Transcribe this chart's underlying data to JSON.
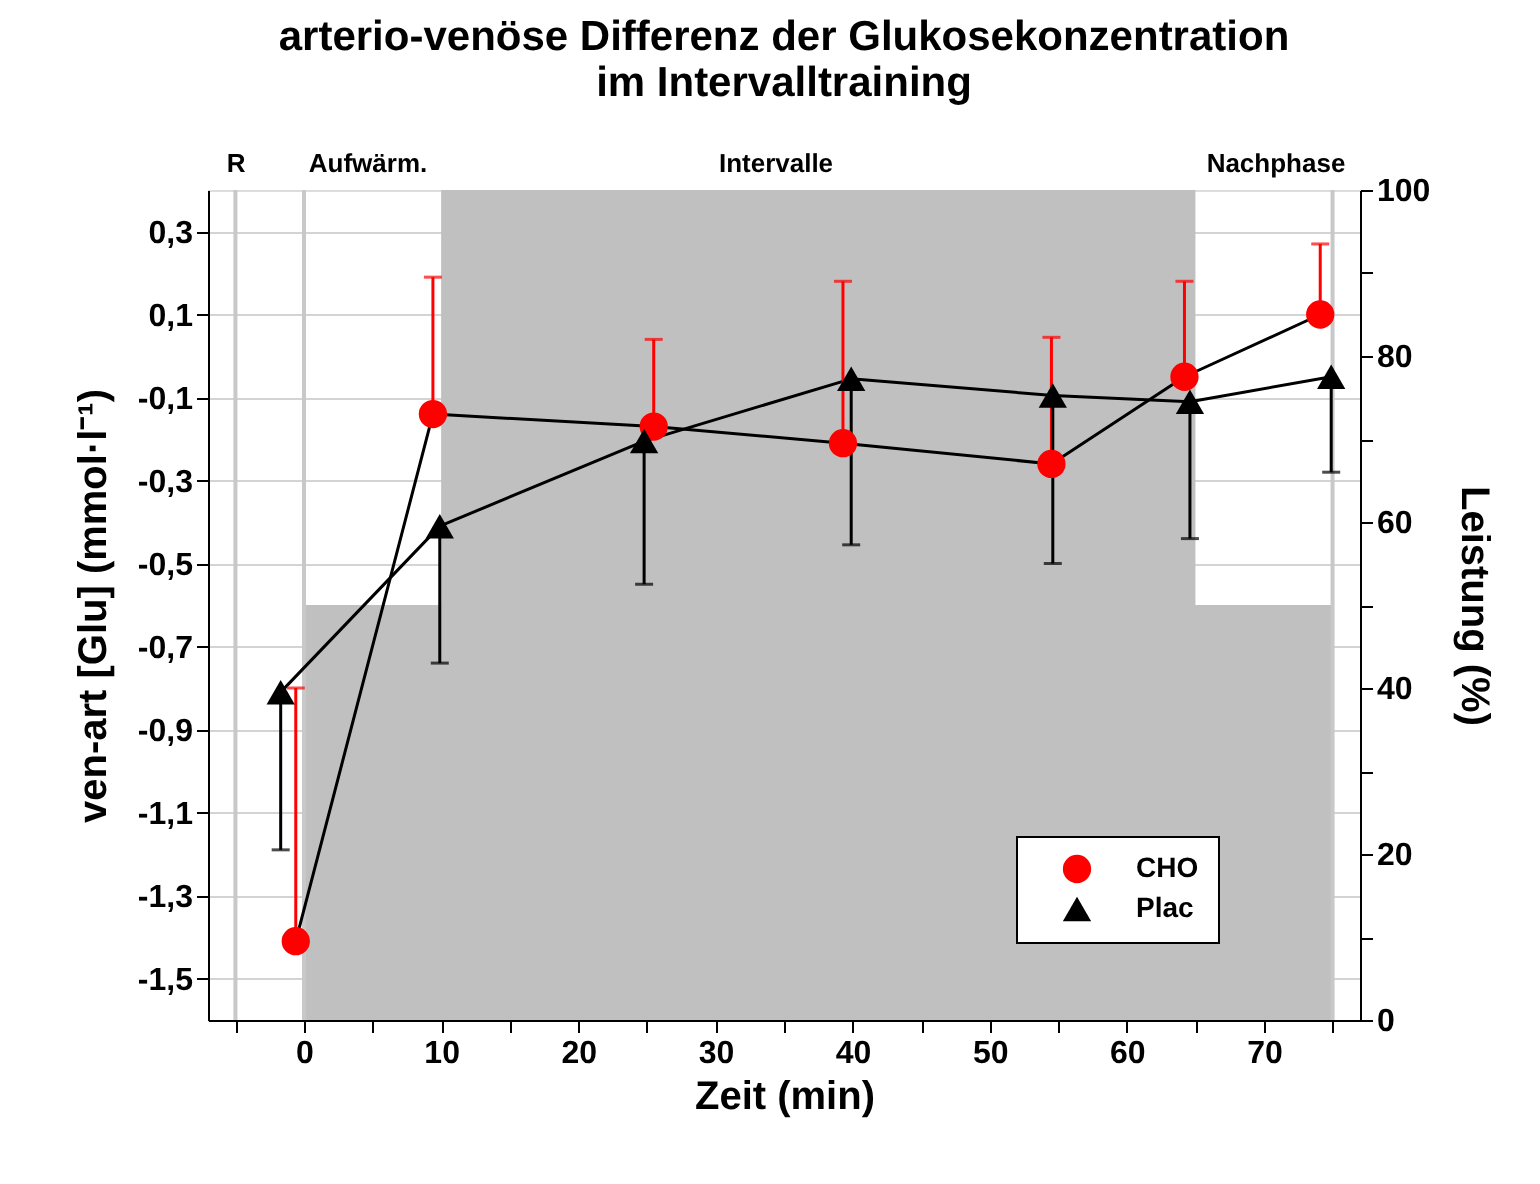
{
  "chart_data": {
    "type": "line",
    "title": "arterio-venöse Differenz der Glukosekonzentration\nim Intervalltraining",
    "xlabel": "Zeit (min)",
    "ylabel": "ven-art [Glu] (mmol·l⁻¹)",
    "y2label": "Leistung (%)",
    "xlim": [
      -7,
      77
    ],
    "xticks": [
      {
        "value": -5,
        "label": null
      },
      0,
      {
        "value": 5,
        "label": null
      },
      10,
      {
        "value": 15,
        "label": null
      },
      20,
      {
        "value": 25,
        "label": null
      },
      30,
      {
        "value": 35,
        "label": null
      },
      40,
      {
        "value": 45,
        "label": null
      },
      50,
      {
        "value": 55,
        "label": null
      },
      60,
      {
        "value": 65,
        "label": null
      },
      70,
      {
        "value": 75,
        "label": null
      }
    ],
    "ylim": [
      -1.6,
      0.4
    ],
    "yticks": [
      {
        "value": 0.3,
        "label": "0,3"
      },
      {
        "value": 0.1,
        "label": "0,1"
      },
      {
        "value": -0.1,
        "label": "-0,1"
      },
      {
        "value": -0.3,
        "label": "-0,3"
      },
      {
        "value": -0.5,
        "label": "-0,5"
      },
      {
        "value": -0.7,
        "label": "-0,7"
      },
      {
        "value": -0.9,
        "label": "-0,9"
      },
      {
        "value": -1.1,
        "label": "-1,1"
      },
      {
        "value": -1.3,
        "label": "-1,3"
      },
      {
        "value": -1.5,
        "label": "-1,5"
      }
    ],
    "y2lim": [
      0,
      100
    ],
    "y2ticks": [
      0,
      {
        "value": 10,
        "label": null
      },
      20,
      {
        "value": 30,
        "label": null
      },
      40,
      {
        "value": 50,
        "label": null
      },
      60,
      {
        "value": 70,
        "label": null
      },
      80,
      {
        "value": 90,
        "label": null
      },
      100
    ],
    "grid": "y",
    "legend": "bottom right",
    "series": [
      {
        "type": "area",
        "axis": "y2",
        "color": "#c0c0c0",
        "x": [
          0,
          10,
          10,
          65,
          65,
          75
        ],
        "values": [
          50,
          50,
          100,
          100,
          50,
          50
        ]
      },
      {
        "name": "CHO",
        "color": "#ff0000",
        "marker": "circle",
        "x": [
          -0.6,
          9.4,
          25.5,
          39.3,
          54.5,
          64.2,
          74.1
        ],
        "values": [
          -1.41,
          -0.14,
          -0.17,
          -0.21,
          -0.26,
          -0.05,
          0.1
        ],
        "errors": [
          [
            -1.41,
            -0.8
          ],
          [
            -0.14,
            0.19
          ],
          [
            -0.17,
            0.04
          ],
          [
            -0.21,
            0.18
          ],
          [
            -0.26,
            0.045
          ],
          [
            -0.05,
            0.18
          ],
          [
            0.1,
            0.27
          ]
        ]
      },
      {
        "name": "Plac",
        "color": "#000000",
        "marker": "triangle",
        "x": [
          -1.7,
          9.9,
          24.8,
          39.9,
          54.6,
          64.6,
          74.9
        ],
        "values": [
          -0.81,
          -0.41,
          -0.205,
          -0.055,
          -0.095,
          -0.11,
          -0.05
        ],
        "errors": [
          [
            -1.19,
            -0.81
          ],
          [
            -0.74,
            -0.41
          ],
          [
            -0.55,
            -0.205
          ],
          [
            -0.455,
            -0.055
          ],
          [
            -0.5,
            -0.095
          ],
          [
            -0.44,
            -0.11
          ],
          [
            -0.28,
            -0.05
          ]
        ]
      }
    ],
    "ref_lines": [
      {
        "axis": "x",
        "value": -5,
        "color": "#c8c8c8"
      },
      {
        "axis": "x",
        "value": 0,
        "color": "#c8c8c8"
      },
      {
        "axis": "x",
        "value": 75,
        "color": "#c8c8c8"
      }
    ],
    "annotations": [
      "R",
      "Aufwärm.",
      "Intervalle",
      "Nachphase"
    ]
  }
}
